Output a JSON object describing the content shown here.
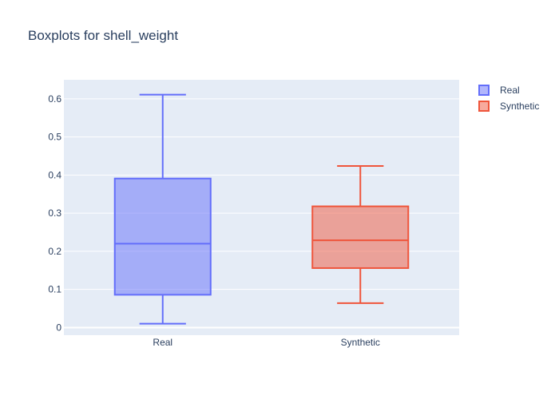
{
  "chart_data": {
    "type": "box",
    "title": "Boxplots for shell_weight",
    "xlabel": "",
    "ylabel": "",
    "ylim": [
      -0.02,
      0.65
    ],
    "yticks": [
      0,
      0.1,
      0.2,
      0.3,
      0.4,
      0.5,
      0.6
    ],
    "ytick_labels": [
      "0",
      "0.1",
      "0.2",
      "0.3",
      "0.4",
      "0.5",
      "0.6"
    ],
    "grid": true,
    "legend_position": "top-right",
    "background_color": "#e5ecf6",
    "series": [
      {
        "name": "Real",
        "category": "Real",
        "stroke_color": "#636efa",
        "fill_color": "rgba(99,110,250,0.5)",
        "min": 0.01,
        "q1": 0.086,
        "median": 0.22,
        "q3": 0.391,
        "max": 0.611
      },
      {
        "name": "Synthetic",
        "category": "Synthetic",
        "stroke_color": "#ef553b",
        "fill_color": "rgba(239,85,59,0.5)",
        "min": 0.064,
        "q1": 0.156,
        "median": 0.229,
        "q3": 0.318,
        "max": 0.424
      }
    ]
  }
}
